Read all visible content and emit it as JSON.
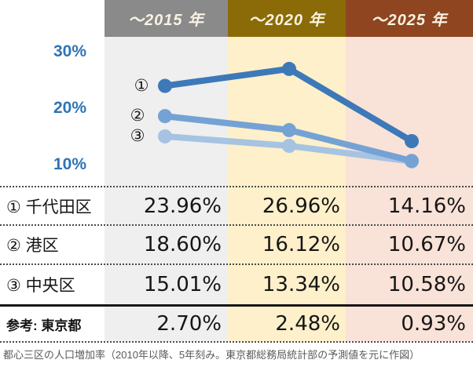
{
  "header": {
    "columns": [
      {
        "label": "～2015 年",
        "band_color": "#8a8a8a",
        "body_color": "#efeff0"
      },
      {
        "label": "～2020 年",
        "band_color": "#8a6b07",
        "body_color": "#fdf0ca"
      },
      {
        "label": "～2025 年",
        "band_color": "#8e4520",
        "body_color": "#f9e2d7"
      }
    ]
  },
  "chart_data": {
    "type": "line",
    "categories": [
      "～2015年",
      "～2020年",
      "～2025年"
    ],
    "series": [
      {
        "marker": "①",
        "name": "千代田区",
        "color": "#3d79b8",
        "values": [
          23.96,
          26.96,
          14.16
        ]
      },
      {
        "marker": "②",
        "name": "港区",
        "color": "#74a2d4",
        "values": [
          18.6,
          16.12,
          10.67
        ]
      },
      {
        "marker": "③",
        "name": "中央区",
        "color": "#a6c3e2",
        "values": [
          15.01,
          13.34,
          10.58
        ]
      }
    ],
    "yticks": [
      "30%",
      "20%",
      "10%"
    ],
    "ylim": [
      10,
      30
    ],
    "xlabel": "",
    "ylabel": "",
    "grid": false,
    "legend_position": "inline-left-of-first-point",
    "tick_color": "#2e74b5"
  },
  "table": {
    "rows": [
      {
        "label": "① 千代田区",
        "values": [
          "23.96%",
          "26.96%",
          "14.16%"
        ]
      },
      {
        "label": "② 港区",
        "values": [
          "18.60%",
          "16.12%",
          "10.67%"
        ]
      },
      {
        "label": "③ 中央区",
        "values": [
          "15.01%",
          "13.34%",
          "10.58%"
        ]
      },
      {
        "label": "参考: 東京都",
        "values": [
          "2.70%",
          "2.48%",
          "0.93%"
        ]
      }
    ]
  },
  "caption": "都心三区の人口増加率（2010年以降、5年刻み。東京都総務局統計部の予測値を元に作図）"
}
